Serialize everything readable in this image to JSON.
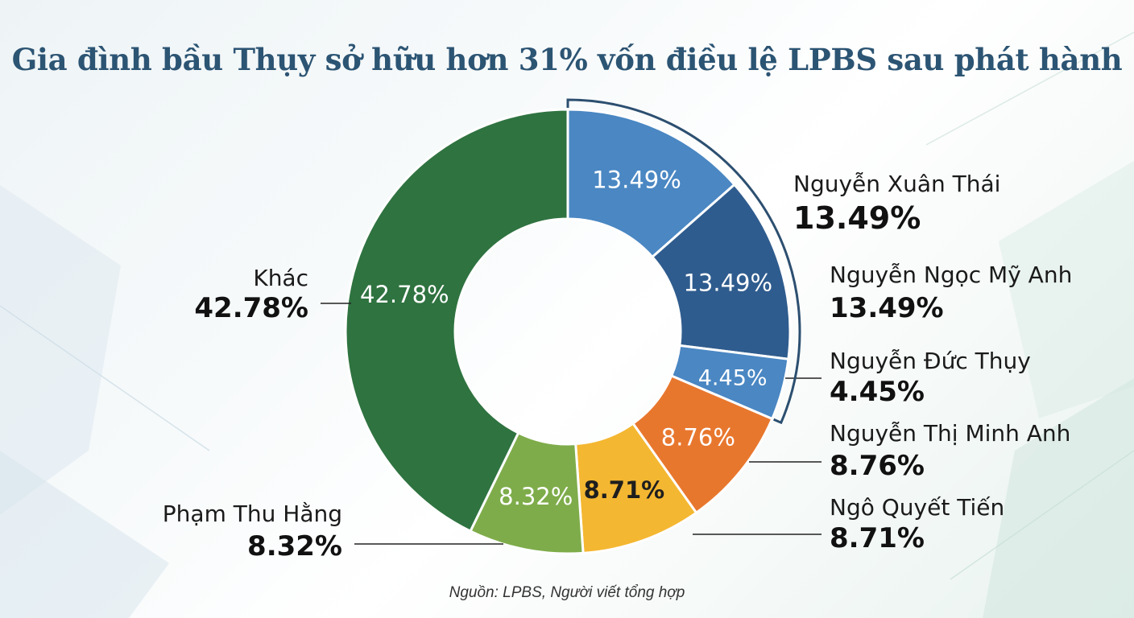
{
  "title": "Gia đình bầu Thụy sở hữu hơn 31% vốn điều lệ LPBS sau phát hành",
  "source": "Nguồn: LPBS, Người viết tổng hợp",
  "chart_data": {
    "type": "pie",
    "title": "Gia đình bầu Thụy sở hữu hơn 31% vốn điều lệ LPBS sau phát hành",
    "unit": "%",
    "slices": [
      {
        "name": "Nguyễn Xuân Thái",
        "value": 13.49,
        "label": "13.49%",
        "color": "#4a87c3"
      },
      {
        "name": "Nguyễn Ngọc Mỹ Anh",
        "value": 13.49,
        "label": "13.49%",
        "color": "#2f5c8e"
      },
      {
        "name": "Nguyễn Đức Thụy",
        "value": 4.45,
        "label": "4.45%",
        "color": "#4a87c3"
      },
      {
        "name": "Nguyễn Thị Minh Anh",
        "value": 8.76,
        "label": "8.76%",
        "color": "#e8772e"
      },
      {
        "name": "Ngô Quyết Tiến",
        "value": 8.71,
        "label": "8.71%",
        "color": "#f4b731"
      },
      {
        "name": "Phạm Thu Hằng",
        "value": 8.32,
        "label": "8.32%",
        "color": "#7eac4a"
      },
      {
        "name": "Khác",
        "value": 42.78,
        "label": "42.78%",
        "color": "#2f7340"
      }
    ],
    "highlight_bracket": [
      "Nguyễn Xuân Thái",
      "Nguyễn Ngọc Mỹ Anh",
      "Nguyễn Đức Thụy"
    ]
  }
}
